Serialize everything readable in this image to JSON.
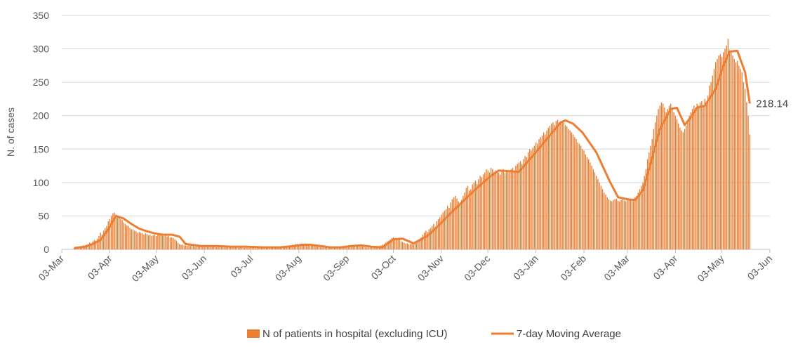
{
  "chart_data": {
    "type": "bar-line",
    "y_label": "N. of cases",
    "xlim": [
      0,
      457
    ],
    "xticks": [
      {
        "value": 0,
        "label": "03-Mar"
      },
      {
        "value": 31,
        "label": "03-Apr"
      },
      {
        "value": 61,
        "label": "03-May"
      },
      {
        "value": 92,
        "label": "03-Jun"
      },
      {
        "value": 122,
        "label": "03-Jul"
      },
      {
        "value": 153,
        "label": "03-Aug"
      },
      {
        "value": 184,
        "label": "03-Sep"
      },
      {
        "value": 214,
        "label": "03-Oct"
      },
      {
        "value": 245,
        "label": "03-Nov"
      },
      {
        "value": 275,
        "label": "03-Dec"
      },
      {
        "value": 306,
        "label": "03-Jan"
      },
      {
        "value": 337,
        "label": "03-Feb"
      },
      {
        "value": 365,
        "label": "03-Mar"
      },
      {
        "value": 396,
        "label": "03-Apr"
      },
      {
        "value": 426,
        "label": "03-May"
      },
      {
        "value": 457,
        "label": "03-Jun"
      }
    ],
    "ylim": [
      0,
      350
    ],
    "yticks": [
      0,
      50,
      100,
      150,
      200,
      250,
      300,
      350
    ],
    "grid": true,
    "legend": "bottom",
    "series": [
      {
        "name": "N of patients in hospital (excluding ICU)",
        "kind": "bar",
        "color": "#ED7D31",
        "x": [
          8,
          9,
          10,
          11,
          12,
          13,
          14,
          15,
          16,
          17,
          18,
          19,
          20,
          21,
          22,
          23,
          24,
          25,
          26,
          27,
          28,
          29,
          30,
          31,
          32,
          33,
          34,
          35,
          36,
          37,
          38,
          39,
          40,
          41,
          42,
          43,
          44,
          45,
          46,
          47,
          48,
          49,
          50,
          51,
          52,
          53,
          54,
          55,
          56,
          57,
          58,
          59,
          60,
          61,
          62,
          63,
          64,
          65,
          66,
          67,
          68,
          69,
          70,
          71,
          72,
          73,
          74,
          75,
          76,
          77,
          78,
          79,
          80,
          81,
          82,
          83,
          84,
          85,
          86,
          87,
          88,
          89,
          90,
          91,
          92,
          93,
          94,
          95,
          96,
          97,
          98,
          99,
          100,
          101,
          102,
          103,
          104,
          105,
          106,
          107,
          108,
          109,
          110,
          111,
          112,
          113,
          114,
          115,
          116,
          117,
          118,
          119,
          120,
          121,
          122,
          123,
          124,
          125,
          126,
          127,
          128,
          129,
          130,
          131,
          132,
          133,
          134,
          135,
          136,
          137,
          138,
          139,
          140,
          141,
          142,
          143,
          144,
          145,
          146,
          147,
          148,
          149,
          150,
          151,
          152,
          153,
          154,
          155,
          156,
          157,
          158,
          159,
          160,
          161,
          162,
          163,
          164,
          165,
          166,
          167,
          168,
          169,
          170,
          171,
          172,
          173,
          174,
          175,
          176,
          177,
          178,
          179,
          180,
          181,
          182,
          183,
          184,
          185,
          186,
          187,
          188,
          189,
          190,
          191,
          192,
          193,
          194,
          195,
          196,
          197,
          198,
          199,
          200,
          201,
          202,
          203,
          204,
          205,
          206,
          207,
          208,
          209,
          210,
          211,
          212,
          213,
          214,
          215,
          216,
          217,
          218,
          219,
          220,
          221,
          222,
          223,
          224,
          225,
          226,
          227,
          228,
          229,
          230,
          231,
          232,
          233,
          234,
          235,
          236,
          237,
          238,
          239,
          240,
          241,
          242,
          243,
          244,
          245,
          246,
          247,
          248,
          249,
          250,
          251,
          252,
          253,
          254,
          255,
          256,
          257,
          258,
          259,
          260,
          261,
          262,
          263,
          264,
          265,
          266,
          267,
          268,
          269,
          270,
          271,
          272,
          273,
          274,
          275,
          276,
          277,
          278,
          279,
          280,
          281,
          282,
          283,
          284,
          285,
          286,
          287,
          288,
          289,
          290,
          291,
          292,
          293,
          294,
          295,
          296,
          297,
          298,
          299,
          300,
          301,
          302,
          303,
          304,
          305,
          306,
          307,
          308,
          309,
          310,
          311,
          312,
          313,
          314,
          315,
          316,
          317,
          318,
          319,
          320,
          321,
          322,
          323,
          324,
          325,
          326,
          327,
          328,
          329,
          330,
          331,
          332,
          333,
          334,
          335,
          336,
          337,
          338,
          339,
          340,
          341,
          342,
          343,
          344,
          345,
          346,
          347,
          348,
          349,
          350,
          351,
          352,
          353,
          354,
          355,
          356,
          357,
          358,
          359,
          360,
          361,
          362,
          363,
          364,
          365,
          366,
          367,
          368,
          369,
          370,
          371,
          372,
          373,
          374,
          375,
          376,
          377,
          378,
          379,
          380,
          381,
          382,
          383,
          384,
          385,
          386,
          387,
          388,
          389,
          390,
          391,
          392,
          393,
          394,
          395,
          396,
          397,
          398,
          399,
          400,
          401,
          402,
          403,
          404,
          405,
          406,
          407,
          408,
          409,
          410,
          411,
          412,
          413,
          414,
          415,
          416,
          417,
          418,
          419,
          420,
          421,
          422,
          423,
          424,
          425,
          426,
          427,
          428,
          429,
          430,
          431,
          432,
          433,
          434,
          435,
          436,
          437,
          438,
          439,
          440,
          441,
          442,
          443,
          444
        ],
        "values": [
          2,
          3,
          3,
          4,
          5,
          4,
          6,
          6,
          7,
          8,
          10,
          9,
          12,
          14,
          13,
          16,
          20,
          25,
          22,
          28,
          32,
          35,
          42,
          45,
          50,
          54,
          55,
          52,
          50,
          48,
          45,
          44,
          40,
          38,
          36,
          35,
          32,
          30,
          30,
          28,
          27,
          25,
          26,
          25,
          24,
          22,
          24,
          23,
          21,
          22,
          20,
          21,
          22,
          20,
          23,
          22,
          21,
          22,
          20,
          21,
          19,
          20,
          18,
          18,
          17,
          15,
          13,
          10,
          8,
          7,
          7,
          6,
          6,
          5,
          6,
          5,
          5,
          5,
          4,
          5,
          5,
          4,
          4,
          5,
          4,
          4,
          5,
          4,
          4,
          4,
          4,
          4,
          3,
          4,
          4,
          3,
          4,
          3,
          3,
          3,
          4,
          3,
          3,
          3,
          3,
          3,
          2,
          3,
          3,
          2,
          2,
          3,
          2,
          2,
          3,
          2,
          2,
          2,
          2,
          2,
          2,
          2,
          2,
          2,
          2,
          2,
          2,
          2,
          2,
          2,
          3,
          2,
          2,
          3,
          3,
          4,
          4,
          5,
          5,
          6,
          6,
          7,
          7,
          8,
          8,
          7,
          7,
          8,
          7,
          7,
          6,
          7,
          6,
          6,
          5,
          5,
          4,
          4,
          4,
          3,
          3,
          3,
          3,
          2,
          3,
          3,
          2,
          2,
          2,
          3,
          2,
          3,
          3,
          4,
          4,
          5,
          5,
          6,
          6,
          6,
          6,
          5,
          6,
          5,
          5,
          4,
          4,
          4,
          3,
          3,
          3,
          3,
          4,
          3,
          4,
          4,
          5,
          5,
          6,
          7,
          8,
          10,
          12,
          13,
          15,
          17,
          18,
          16,
          17,
          15,
          14,
          12,
          11,
          10,
          9,
          9,
          8,
          8,
          8,
          7,
          9,
          10,
          12,
          15,
          18,
          22,
          25,
          28,
          26,
          30,
          32,
          35,
          38,
          34,
          42,
          45,
          48,
          52,
          55,
          58,
          60,
          65,
          62,
          70,
          75,
          78,
          80,
          76,
          72,
          70,
          74,
          80,
          85,
          92,
          95,
          88,
          90,
          97,
          100,
          103,
          98,
          105,
          110,
          108,
          112,
          115,
          120,
          118,
          115,
          122,
          120,
          116,
          118,
          117,
          115,
          112,
          118,
          120,
          114,
          116,
          118,
          115,
          120,
          122,
          118,
          125,
          128,
          130,
          132,
          128,
          135,
          140,
          138,
          145,
          150,
          148,
          152,
          155,
          160,
          158,
          165,
          168,
          170,
          175,
          172,
          178,
          182,
          185,
          188,
          190,
          186,
          192,
          194,
          190,
          188,
          192,
          190,
          186,
          184,
          180,
          178,
          175,
          172,
          168,
          165,
          160,
          158,
          155,
          150,
          148,
          142,
          138,
          135,
          130,
          125,
          120,
          115,
          110,
          105,
          100,
          95,
          90,
          85,
          82,
          78,
          75,
          73,
          72,
          74,
          75,
          76,
          73,
          72,
          74,
          75,
          73,
          72,
          74,
          76,
          75,
          73,
          75,
          78,
          80,
          85,
          90,
          95,
          100,
          110,
          120,
          135,
          145,
          155,
          165,
          180,
          190,
          200,
          210,
          215,
          220,
          218,
          212,
          205,
          210,
          215,
          218,
          212,
          205,
          200,
          195,
          188,
          182,
          178,
          175,
          180,
          185,
          190,
          200,
          205,
          210,
          215,
          212,
          218,
          215,
          220,
          222,
          215,
          225,
          220,
          230,
          245,
          250,
          260,
          270,
          280,
          285,
          290,
          292,
          288,
          295,
          300,
          305,
          315,
          298,
          295,
          290,
          285,
          280,
          282,
          275,
          270,
          265,
          250,
          240,
          220,
          200,
          172
        ]
      },
      {
        "name": "7-day Moving Average",
        "kind": "line",
        "color": "#ED7D31",
        "x": [
          8,
          15,
          20,
          25,
          30,
          35,
          40,
          45,
          50,
          55,
          60,
          65,
          71,
          76,
          80,
          90,
          100,
          110,
          120,
          130,
          141,
          150,
          155,
          160,
          167,
          173,
          180,
          187,
          193,
          200,
          207,
          214,
          220,
          227,
          236,
          243,
          250,
          259,
          268,
          277,
          282,
          288,
          295,
          304,
          313,
          322,
          325,
          330,
          336,
          345,
          354,
          359,
          365,
          370,
          375,
          379,
          386,
          393,
          397,
          402,
          406,
          410,
          415,
          422,
          427,
          431,
          436,
          441,
          444
        ],
        "values": [
          2,
          4,
          8,
          14,
          30,
          50,
          46,
          38,
          31,
          27,
          24,
          22,
          22,
          19,
          8,
          5,
          5,
          4,
          4,
          3,
          3,
          5,
          7,
          7,
          5,
          3,
          3,
          5,
          6,
          4,
          3,
          15,
          16,
          9,
          20,
          35,
          52,
          72,
          92,
          110,
          118,
          117,
          116,
          140,
          165,
          190,
          193,
          188,
          175,
          145,
          100,
          78,
          75,
          74,
          88,
          120,
          180,
          210,
          212,
          186,
          198,
          212,
          215,
          240,
          275,
          296,
          297,
          265,
          218.14
        ]
      }
    ]
  }
}
